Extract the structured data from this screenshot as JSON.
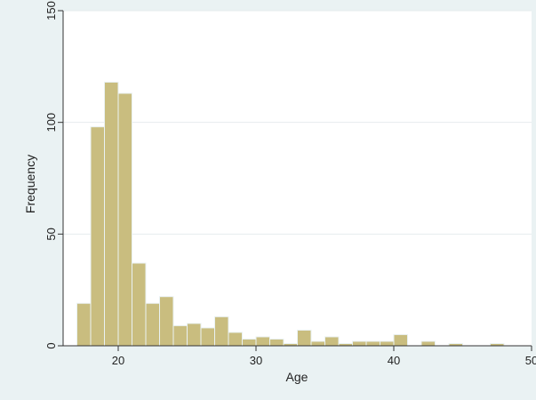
{
  "chart_data": {
    "type": "bar",
    "title": "",
    "xlabel": "Age",
    "ylabel": "Frequency",
    "xlim": [
      16,
      50
    ],
    "ylim": [
      0,
      150
    ],
    "bin_width": 1,
    "x_ticks": [
      20,
      30,
      40,
      50
    ],
    "y_ticks": [
      0,
      50,
      100,
      150
    ],
    "grid": true,
    "colors": {
      "bar_fill": "#c9bd7f",
      "bar_stroke": "#eaf2f3",
      "plot_background": "#ffffff",
      "outer_background": "#eaf2f3",
      "grid": "#e6ecee",
      "axis": "#333333"
    },
    "series": [
      {
        "x": [
          17.5,
          18.5,
          19.5,
          20.5,
          21.5,
          22.5,
          23.5,
          24.5,
          25.5,
          26.5,
          27.5,
          28.5,
          29.5,
          30.5,
          31.5,
          32.5,
          33.5,
          34.5,
          35.5,
          36.5,
          37.5,
          38.5,
          39.5,
          40.5,
          41.5,
          42.5,
          43.5,
          44.5,
          45.5,
          46.5,
          47.5
        ],
        "values": [
          19,
          98,
          118,
          113,
          37,
          19,
          22,
          9,
          10,
          8,
          13,
          6,
          3,
          4,
          3,
          1,
          7,
          2,
          4,
          1,
          2,
          2,
          2,
          5,
          0,
          2,
          0,
          1,
          0,
          0,
          1
        ]
      }
    ]
  }
}
